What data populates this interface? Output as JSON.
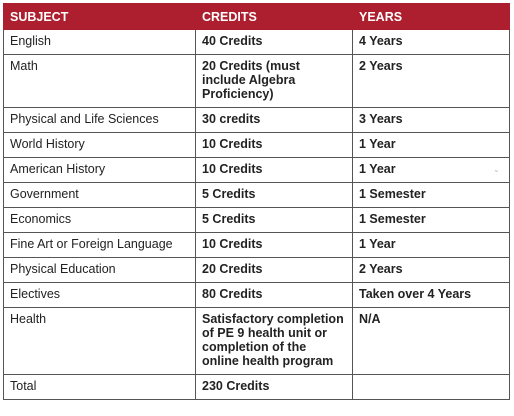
{
  "header": {
    "subject": "SUBJECT",
    "credits": "CREDITS",
    "years": "YEARS"
  },
  "rows": [
    {
      "subject": "English",
      "credits": "40 Credits",
      "years": "4 Years"
    },
    {
      "subject": "Math",
      "credits": "20 Credits (must include Algebra Proficiency)",
      "years": "2 Years"
    },
    {
      "subject": "Physical and Life Sciences",
      "credits": "30 credits",
      "years": "3 Years"
    },
    {
      "subject": "World History",
      "credits": "10 Credits",
      "years": "1 Year"
    },
    {
      "subject": "American History",
      "credits": "10 Credits",
      "years": "1 Year"
    },
    {
      "subject": "Government",
      "credits": "5 Credits",
      "years": "1 Semester"
    },
    {
      "subject": "Economics",
      "credits": "5 Credits",
      "years": "1 Semester"
    },
    {
      "subject": "Fine Art or Foreign Language",
      "credits": "10 Credits",
      "years": "1 Year"
    },
    {
      "subject": "Physical Education",
      "credits": "20 Credits",
      "years": "2 Years"
    },
    {
      "subject": "Electives",
      "credits": "80 Credits",
      "years": "Taken over 4 Years"
    },
    {
      "subject": "Health",
      "credits": "Satisfactory completion of PE 9 health unit or completion of the online health program",
      "years": "N/A"
    },
    {
      "subject": "Total",
      "credits": "230 Credits",
      "years": ""
    }
  ],
  "colors": {
    "header_bg": "#ad1f2e",
    "header_text": "#ffffff",
    "border": "#555555"
  }
}
